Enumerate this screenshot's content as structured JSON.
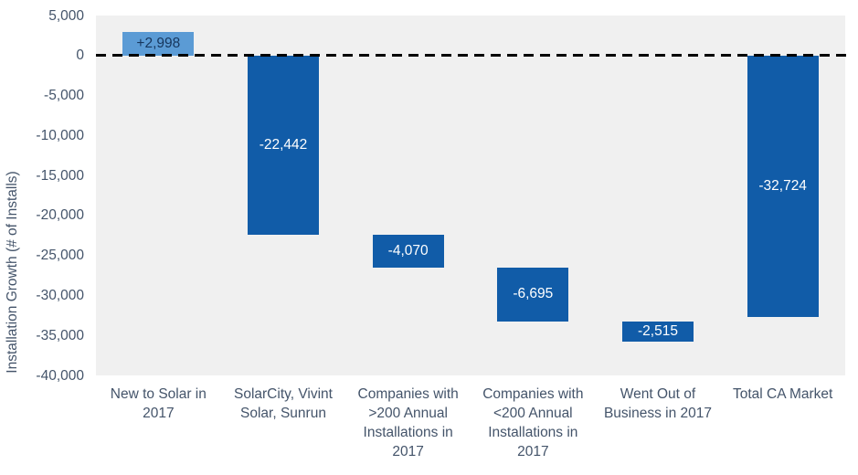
{
  "chart_data": {
    "type": "bar",
    "subtype": "waterfall",
    "title": "",
    "xlabel": "",
    "ylabel": "Installation Growth (# of Installs)",
    "ylim": [
      -40000,
      5000
    ],
    "ytick_interval": 5000,
    "grid": false,
    "legend": false,
    "plot_background": "#F0F0F0",
    "text_color": "#44546A",
    "zero_line": {
      "style": "dashed",
      "color": "#000000"
    },
    "yticks": [
      {
        "value": 5000,
        "label": "5,000"
      },
      {
        "value": 0,
        "label": "0"
      },
      {
        "value": -5000,
        "label": "-5,000"
      },
      {
        "value": -10000,
        "label": "-10,000"
      },
      {
        "value": -15000,
        "label": "-15,000"
      },
      {
        "value": -20000,
        "label": "-20,000"
      },
      {
        "value": -25000,
        "label": "-25,000"
      },
      {
        "value": -30000,
        "label": "-30,000"
      },
      {
        "value": -35000,
        "label": "-35,000"
      },
      {
        "value": -40000,
        "label": "-40,000"
      }
    ],
    "categories": [
      "New to Solar in 2017",
      "SolarCity, Vivint Solar, Sunrun",
      "Companies with >200 Annual Installations in 2017",
      "Companies with <200 Annual Installations in 2017",
      "Went Out of Business in 2017",
      "Total CA Market"
    ],
    "bars": [
      {
        "category_lines": [
          "New to Solar in",
          "2017"
        ],
        "value": 2998,
        "label": "+2,998",
        "start": 0,
        "end": 2998,
        "color": "#5B9BD5",
        "label_color": "#17365D"
      },
      {
        "category_lines": [
          "SolarCity, Vivint",
          "Solar, Sunrun"
        ],
        "value": -22442,
        "label": "-22,442",
        "start": 0,
        "end": -22442,
        "color": "#115CA8",
        "label_color": "#FFFFFF"
      },
      {
        "category_lines": [
          "Companies with",
          ">200 Annual",
          "Installations in",
          "2017"
        ],
        "value": -4070,
        "label": "-4,070",
        "start": -22442,
        "end": -26512,
        "color": "#115CA8",
        "label_color": "#FFFFFF"
      },
      {
        "category_lines": [
          "Companies with",
          "<200 Annual",
          "Installations in",
          "2017"
        ],
        "value": -6695,
        "label": "-6,695",
        "start": -26512,
        "end": -33207,
        "color": "#115CA8",
        "label_color": "#FFFFFF"
      },
      {
        "category_lines": [
          "Went Out of",
          "Business in 2017"
        ],
        "value": -2515,
        "label": "-2,515",
        "start": -33207,
        "end": -35722,
        "color": "#115CA8",
        "label_color": "#FFFFFF"
      },
      {
        "category_lines": [
          "Total CA Market"
        ],
        "value": -32724,
        "label": "-32,724",
        "start": 0,
        "end": -32724,
        "color": "#115CA8",
        "label_color": "#FFFFFF"
      }
    ]
  }
}
